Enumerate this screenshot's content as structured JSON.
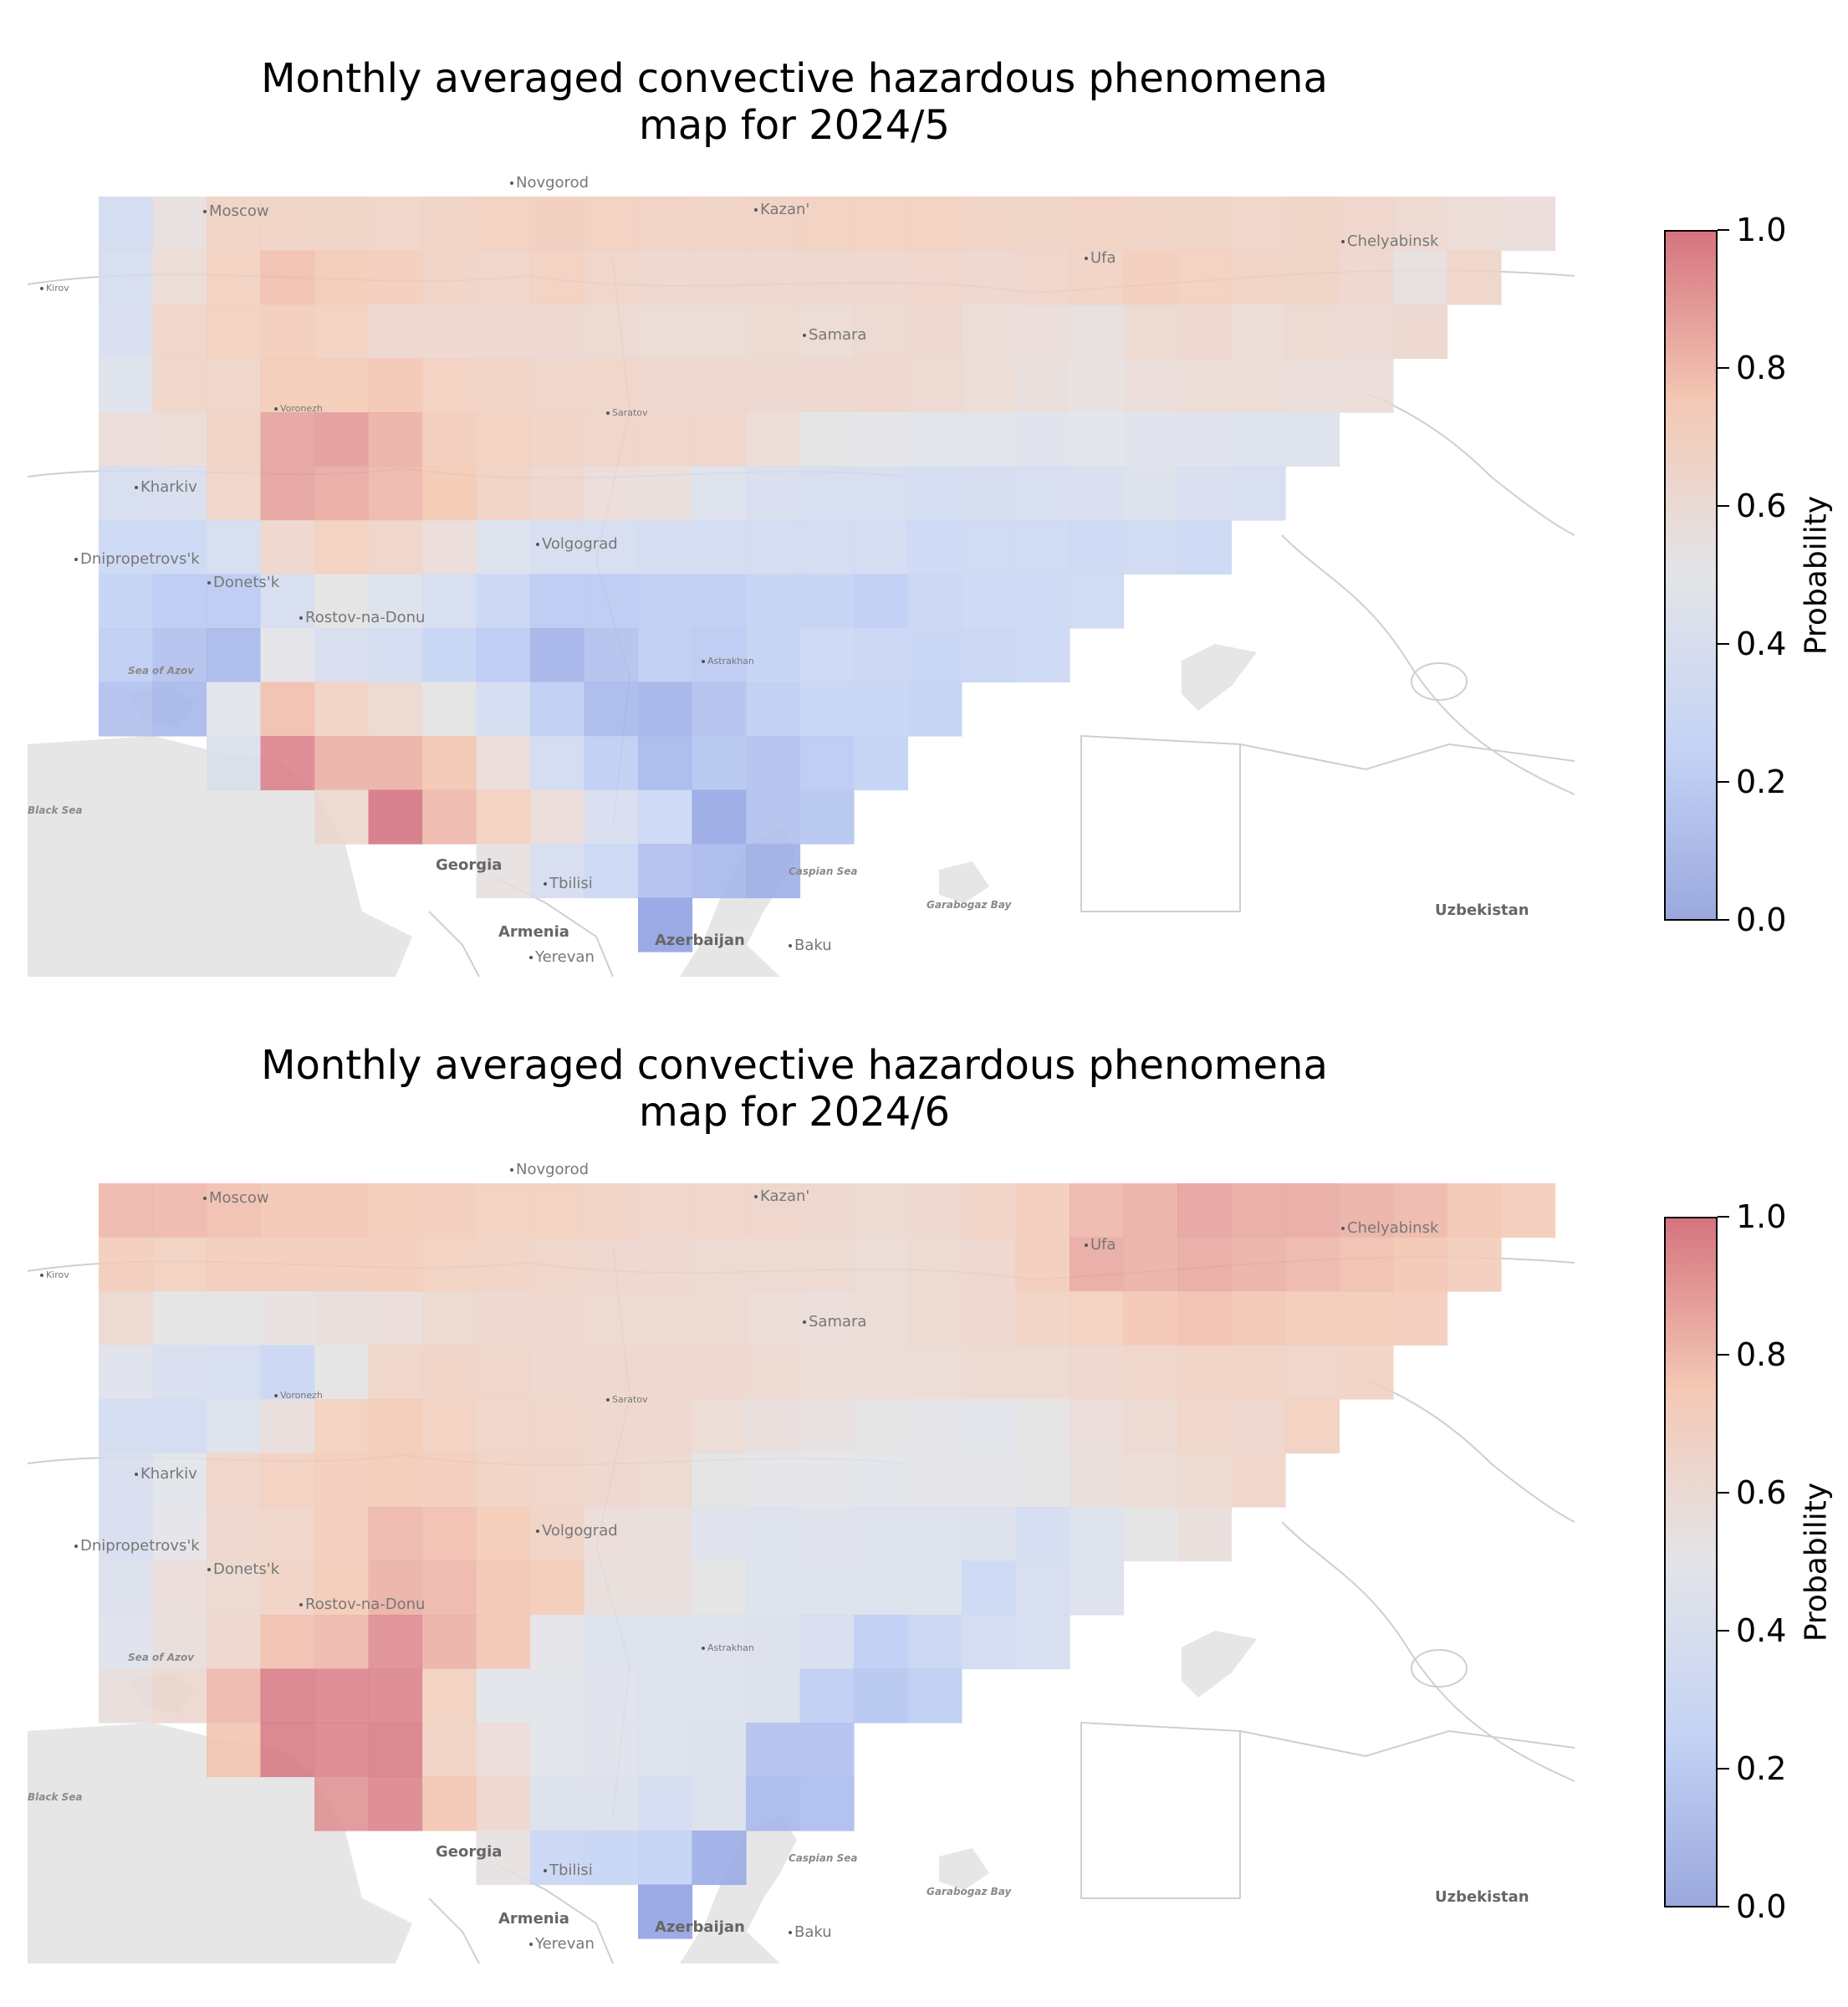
{
  "colorbar": {
    "label": "Probability",
    "ticks": [
      "1.0",
      "0.8",
      "0.6",
      "0.4",
      "0.2",
      "0.0"
    ],
    "colors": {
      "low": "#9ba8de",
      "mid": "#e3e4e8",
      "high": "#d6747f"
    }
  },
  "cities": [
    {
      "name": "Novgorod",
      "style": "big"
    },
    {
      "name": "Moscow",
      "style": "big"
    },
    {
      "name": "Kazan'",
      "style": "big"
    },
    {
      "name": "Chelyabinsk",
      "style": "big"
    },
    {
      "name": "Ufa",
      "style": "big"
    },
    {
      "name": "Kirov",
      "style": "small"
    },
    {
      "name": "Samara",
      "style": "big"
    },
    {
      "name": "Voronezh",
      "style": "small"
    },
    {
      "name": "Saratov",
      "style": "small"
    },
    {
      "name": "Kharkiv",
      "style": "big"
    },
    {
      "name": "Volgograd",
      "style": "big"
    },
    {
      "name": "Dnipropetrovs'k",
      "style": "big"
    },
    {
      "name": "Donets'k",
      "style": "big"
    },
    {
      "name": "Rostov-na-Donu",
      "style": "big"
    },
    {
      "name": "Sea of Azov",
      "style": "ital"
    },
    {
      "name": "Astrakhan",
      "style": "small"
    },
    {
      "name": "Black Sea",
      "style": "ital"
    },
    {
      "name": "Georgia",
      "style": "bold"
    },
    {
      "name": "Tbilisi",
      "style": "big"
    },
    {
      "name": "Caspian Sea",
      "style": "ital"
    },
    {
      "name": "Garabogaz Bay",
      "style": "ital"
    },
    {
      "name": "Uzbekistan",
      "style": "bold"
    },
    {
      "name": "Armenia",
      "style": "bold"
    },
    {
      "name": "Yerevan",
      "style": "big"
    },
    {
      "name": "Azerbaijan",
      "style": "bold"
    },
    {
      "name": "Baku",
      "style": "big"
    }
  ],
  "panels": [
    {
      "title_line1": "Monthly averaged convective hazardous phenomena",
      "title_line2": "map for 2024/5",
      "grid": {
        "rows": [
          {
            "start": 0,
            "values": [
              0.35,
              0.55,
              0.68,
              0.68,
              0.67,
              0.66,
              0.68,
              0.7,
              0.71,
              0.7,
              0.69,
              0.68,
              0.69,
              0.7,
              0.7,
              0.7,
              0.68,
              0.67,
              0.69,
              0.68,
              0.67,
              0.66,
              0.67,
              0.65,
              0.62,
              0.6,
              0.58
            ]
          },
          {
            "start": 0,
            "values": [
              0.38,
              0.6,
              0.7,
              0.78,
              0.74,
              0.72,
              0.68,
              0.66,
              0.7,
              0.66,
              0.64,
              0.63,
              0.64,
              0.63,
              0.64,
              0.65,
              0.63,
              0.65,
              0.68,
              0.72,
              0.7,
              0.68,
              0.67,
              0.64,
              0.55,
              0.66
            ]
          },
          {
            "start": 0,
            "values": [
              0.4,
              0.66,
              0.7,
              0.72,
              0.7,
              0.63,
              0.64,
              0.63,
              0.63,
              0.62,
              0.6,
              0.6,
              0.62,
              0.6,
              0.62,
              0.63,
              0.59,
              0.58,
              0.55,
              0.62,
              0.63,
              0.6,
              0.62,
              0.61,
              0.63
            ]
          },
          {
            "start": 0,
            "values": [
              0.45,
              0.66,
              0.66,
              0.74,
              0.74,
              0.76,
              0.7,
              0.68,
              0.66,
              0.66,
              0.64,
              0.64,
              0.63,
              0.63,
              0.64,
              0.62,
              0.6,
              0.56,
              0.54,
              0.58,
              0.6,
              0.6,
              0.58,
              0.58
            ]
          },
          {
            "start": 0,
            "values": [
              0.58,
              0.6,
              0.68,
              0.86,
              0.88,
              0.82,
              0.72,
              0.7,
              0.68,
              0.66,
              0.66,
              0.66,
              0.6,
              0.52,
              0.5,
              0.48,
              0.47,
              0.46,
              0.48,
              0.46,
              0.46,
              0.45,
              0.44
            ]
          },
          {
            "start": 0,
            "values": [
              0.38,
              0.4,
              0.66,
              0.86,
              0.84,
              0.8,
              0.75,
              0.68,
              0.64,
              0.58,
              0.56,
              0.44,
              0.4,
              0.38,
              0.38,
              0.36,
              0.37,
              0.38,
              0.4,
              0.42,
              0.4,
              0.38
            ]
          },
          {
            "start": 0,
            "values": [
              0.3,
              0.3,
              0.38,
              0.64,
              0.7,
              0.66,
              0.58,
              0.44,
              0.38,
              0.38,
              0.36,
              0.34,
              0.34,
              0.34,
              0.34,
              0.3,
              0.32,
              0.32,
              0.3,
              0.32,
              0.3
            ]
          },
          {
            "start": 0,
            "values": [
              0.24,
              0.2,
              0.2,
              0.38,
              0.52,
              0.44,
              0.38,
              0.28,
              0.2,
              0.2,
              0.22,
              0.22,
              0.24,
              0.24,
              0.22,
              0.28,
              0.3,
              0.3,
              0.32
            ]
          },
          {
            "start": 0,
            "values": [
              0.22,
              0.16,
              0.12,
              0.5,
              0.4,
              0.36,
              0.26,
              0.2,
              0.1,
              0.16,
              0.22,
              0.2,
              0.24,
              0.3,
              0.28,
              0.26,
              0.28,
              0.3
            ]
          },
          {
            "start": 0,
            "values": [
              0.16,
              0.12,
              0.48,
              0.78,
              0.68,
              0.62,
              0.52,
              0.36,
              0.22,
              0.12,
              0.1,
              0.16,
              0.22,
              0.26,
              0.26,
              0.24
            ]
          },
          {
            "start": 2,
            "values": [
              0.42,
              0.94,
              0.82,
              0.82,
              0.76,
              0.58,
              0.34,
              0.22,
              0.12,
              0.18,
              0.16,
              0.2,
              0.24
            ]
          },
          {
            "start": 4,
            "values": [
              0.62,
              0.98,
              0.8,
              0.7,
              0.58,
              0.4,
              0.3,
              0.04,
              0.16,
              0.18
            ]
          },
          {
            "start": 7,
            "values": [
              0.54,
              0.38,
              0.3,
              0.16,
              0.12,
              0.08
            ]
          },
          {
            "start": 10,
            "values": [
              0.02
            ]
          }
        ]
      }
    },
    {
      "title_line1": "Monthly averaged convective hazardous phenomena",
      "title_line2": "map for 2024/6",
      "grid": {
        "rows": [
          {
            "start": 0,
            "values": [
              0.8,
              0.8,
              0.78,
              0.76,
              0.76,
              0.74,
              0.72,
              0.7,
              0.7,
              0.68,
              0.66,
              0.66,
              0.65,
              0.64,
              0.62,
              0.64,
              0.68,
              0.72,
              0.8,
              0.82,
              0.86,
              0.84,
              0.84,
              0.82,
              0.8,
              0.76,
              0.72
            ]
          },
          {
            "start": 0,
            "values": [
              0.72,
              0.7,
              0.72,
              0.72,
              0.72,
              0.72,
              0.7,
              0.68,
              0.66,
              0.64,
              0.64,
              0.62,
              0.62,
              0.62,
              0.6,
              0.62,
              0.64,
              0.72,
              0.84,
              0.82,
              0.84,
              0.82,
              0.8,
              0.78,
              0.76,
              0.72
            ]
          },
          {
            "start": 0,
            "values": [
              0.62,
              0.52,
              0.52,
              0.54,
              0.56,
              0.58,
              0.62,
              0.64,
              0.64,
              0.62,
              0.62,
              0.62,
              0.6,
              0.58,
              0.6,
              0.62,
              0.64,
              0.68,
              0.7,
              0.76,
              0.78,
              0.76,
              0.74,
              0.74,
              0.72
            ]
          },
          {
            "start": 0,
            "values": [
              0.46,
              0.4,
              0.38,
              0.28,
              0.52,
              0.66,
              0.68,
              0.66,
              0.64,
              0.64,
              0.64,
              0.64,
              0.62,
              0.6,
              0.6,
              0.6,
              0.62,
              0.62,
              0.64,
              0.66,
              0.68,
              0.68,
              0.66,
              0.68
            ]
          },
          {
            "start": 0,
            "values": [
              0.36,
              0.34,
              0.44,
              0.56,
              0.7,
              0.74,
              0.7,
              0.66,
              0.66,
              0.64,
              0.64,
              0.6,
              0.56,
              0.54,
              0.52,
              0.5,
              0.48,
              0.52,
              0.58,
              0.62,
              0.66,
              0.64,
              0.7
            ]
          },
          {
            "start": 0,
            "values": [
              0.4,
              0.48,
              0.66,
              0.7,
              0.72,
              0.74,
              0.72,
              0.68,
              0.66,
              0.64,
              0.62,
              0.52,
              0.5,
              0.5,
              0.48,
              0.5,
              0.5,
              0.52,
              0.56,
              0.6,
              0.62,
              0.66
            ]
          },
          {
            "start": 0,
            "values": [
              0.4,
              0.5,
              0.64,
              0.66,
              0.72,
              0.8,
              0.78,
              0.74,
              0.68,
              0.58,
              0.56,
              0.46,
              0.44,
              0.46,
              0.44,
              0.44,
              0.42,
              0.36,
              0.44,
              0.52,
              0.56
            ]
          },
          {
            "start": 0,
            "values": [
              0.42,
              0.58,
              0.62,
              0.68,
              0.74,
              0.82,
              0.8,
              0.76,
              0.74,
              0.56,
              0.56,
              0.52,
              0.44,
              0.44,
              0.44,
              0.44,
              0.3,
              0.38,
              0.44
            ]
          },
          {
            "start": 0,
            "values": [
              0.46,
              0.56,
              0.64,
              0.78,
              0.8,
              0.92,
              0.82,
              0.76,
              0.5,
              0.44,
              0.44,
              0.44,
              0.42,
              0.4,
              0.22,
              0.28,
              0.34,
              0.38
            ]
          },
          {
            "start": 0,
            "values": [
              0.56,
              0.62,
              0.8,
              0.96,
              0.94,
              0.94,
              0.7,
              0.48,
              0.48,
              0.46,
              0.44,
              0.44,
              0.42,
              0.22,
              0.18,
              0.22
            ]
          },
          {
            "start": 2,
            "values": [
              0.76,
              0.96,
              0.94,
              0.96,
              0.68,
              0.58,
              0.48,
              0.46,
              0.44,
              0.42,
              0.16,
              0.16
            ]
          },
          {
            "start": 4,
            "values": [
              0.9,
              0.94,
              0.76,
              0.64,
              0.42,
              0.42,
              0.36,
              0.42,
              0.12,
              0.14
            ]
          },
          {
            "start": 7,
            "values": [
              0.54,
              0.28,
              0.26,
              0.24,
              0.06
            ]
          },
          {
            "start": 10,
            "values": [
              0.02
            ]
          }
        ]
      }
    }
  ]
}
